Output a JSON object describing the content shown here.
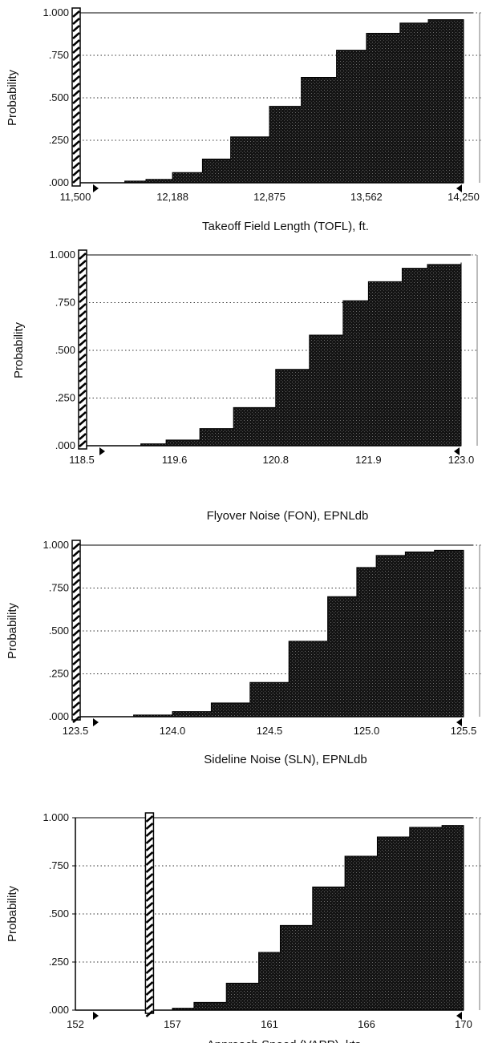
{
  "chart_data": [
    {
      "type": "area",
      "ylabel": "Probability",
      "xlabel": "Takeoff Field Length (TOFL), ft.",
      "xlim": [
        11500,
        14250
      ],
      "ylim": [
        0,
        1
      ],
      "x_tick_labels": [
        "11,500",
        "12,188",
        "12,875",
        "13,562",
        "14,250"
      ],
      "x_tick_values": [
        11500,
        12188,
        12875,
        13562,
        14250
      ],
      "y_tick_labels": [
        ".000",
        ".250",
        ".500",
        ".750",
        "1.000"
      ],
      "y_tick_values": [
        0,
        0.25,
        0.5,
        0.75,
        1
      ],
      "constraint_value": 11500,
      "series": [
        {
          "x": [
            11700,
            11850,
            12000,
            12188,
            12400,
            12600,
            12875,
            13100,
            13350,
            13562,
            13800,
            14000,
            14250
          ],
          "y": [
            0.0,
            0.01,
            0.02,
            0.06,
            0.14,
            0.27,
            0.45,
            0.62,
            0.78,
            0.88,
            0.94,
            0.96,
            0.96
          ]
        }
      ]
    },
    {
      "type": "area",
      "ylabel": "Probability",
      "xlabel": "Flyover Noise (FON), EPNLdb",
      "xlim": [
        118.5,
        123.0
      ],
      "ylim": [
        0,
        1
      ],
      "x_tick_labels": [
        "118.5",
        "119.6",
        "120.8",
        "121.9",
        "123.0"
      ],
      "x_tick_values": [
        118.5,
        119.6,
        120.8,
        121.9,
        123.0
      ],
      "y_tick_labels": [
        ".000",
        ".250",
        ".500",
        ".750",
        "1.000"
      ],
      "y_tick_values": [
        0,
        0.25,
        0.5,
        0.75,
        1
      ],
      "constraint_value": 118.5,
      "series": [
        {
          "x": [
            118.8,
            119.2,
            119.5,
            119.9,
            120.3,
            120.8,
            121.2,
            121.6,
            121.9,
            122.3,
            122.6,
            123.0
          ],
          "y": [
            0.0,
            0.01,
            0.03,
            0.09,
            0.2,
            0.4,
            0.58,
            0.76,
            0.86,
            0.93,
            0.95,
            0.96
          ]
        }
      ]
    },
    {
      "type": "area",
      "ylabel": "Probability",
      "xlabel": "Sideline Noise (SLN), EPNLdb",
      "xlim": [
        123.5,
        125.5
      ],
      "ylim": [
        0,
        1
      ],
      "x_tick_labels": [
        "123.5",
        "124.0",
        "124.5",
        "125.0",
        "125.5"
      ],
      "x_tick_values": [
        123.5,
        124.0,
        124.5,
        125.0,
        125.5
      ],
      "y_tick_labels": [
        ".000",
        ".250",
        ".500",
        ".750",
        "1.000"
      ],
      "y_tick_values": [
        0,
        0.25,
        0.5,
        0.75,
        1
      ],
      "constraint_value": 123.5,
      "series": [
        {
          "x": [
            123.55,
            123.8,
            124.0,
            124.2,
            124.4,
            124.6,
            124.8,
            124.95,
            125.05,
            125.2,
            125.35,
            125.5
          ],
          "y": [
            0.0,
            0.01,
            0.03,
            0.08,
            0.2,
            0.44,
            0.7,
            0.87,
            0.94,
            0.96,
            0.97,
            0.97
          ]
        }
      ]
    },
    {
      "type": "area",
      "ylabel": "Probability",
      "xlabel": "Approach Speed (VAPP), kts.",
      "xlim": [
        152,
        170
      ],
      "ylim": [
        0,
        1
      ],
      "x_tick_labels": [
        "152",
        "157",
        "161",
        "166",
        "170"
      ],
      "x_tick_values": [
        152,
        156.5,
        161,
        165.5,
        170
      ],
      "y_tick_labels": [
        ".000",
        ".250",
        ".500",
        ".750",
        "1.000"
      ],
      "y_tick_values": [
        0,
        0.25,
        0.5,
        0.75,
        1
      ],
      "constraint_value": 155.4,
      "series": [
        {
          "x": [
            155.6,
            156.5,
            157.5,
            159,
            160.5,
            161.5,
            163,
            164.5,
            166,
            167.5,
            169,
            170
          ],
          "y": [
            0.0,
            0.01,
            0.04,
            0.14,
            0.3,
            0.44,
            0.64,
            0.8,
            0.9,
            0.95,
            0.96,
            0.96
          ]
        }
      ]
    }
  ]
}
